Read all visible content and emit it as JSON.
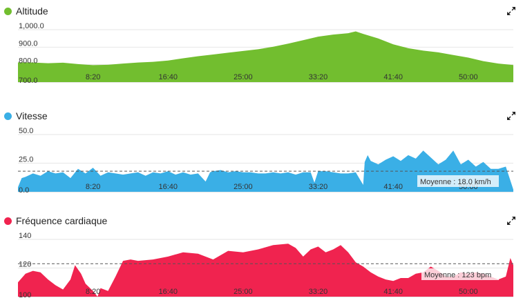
{
  "chart_data": [
    {
      "type": "area",
      "title": "Altitude",
      "color": "#72be2f",
      "ylim": [
        700,
        1000
      ],
      "y_ticks": [
        "1,000.0",
        "900.0",
        "800.0",
        "700.0"
      ],
      "y_tick_values": [
        1000,
        900,
        800,
        700
      ],
      "x_ticks": [
        "8:20",
        "16:40",
        "25:00",
        "33:20",
        "41:40",
        "50:00"
      ],
      "x_tick_values": [
        500,
        1000,
        1500,
        2000,
        2500,
        3000
      ],
      "xlim": [
        0,
        3300
      ],
      "x": [
        0,
        100,
        200,
        300,
        400,
        500,
        600,
        700,
        800,
        900,
        1000,
        1100,
        1200,
        1300,
        1400,
        1500,
        1600,
        1700,
        1800,
        1900,
        2000,
        2100,
        2200,
        2250,
        2300,
        2400,
        2500,
        2600,
        2700,
        2800,
        2900,
        3000,
        3100,
        3200,
        3300
      ],
      "y": [
        813,
        812,
        808,
        811,
        803,
        797,
        799,
        806,
        812,
        816,
        823,
        836,
        848,
        858,
        868,
        878,
        888,
        902,
        920,
        940,
        960,
        972,
        980,
        990,
        976,
        950,
        916,
        894,
        880,
        870,
        855,
        840,
        820,
        806,
        798
      ]
    },
    {
      "type": "area",
      "title": "Vitesse",
      "color": "#3aafe6",
      "ylim": [
        0,
        50
      ],
      "y_ticks": [
        "50.0",
        "25.0",
        "0.0"
      ],
      "y_tick_values": [
        50,
        25,
        0
      ],
      "x_ticks": [
        "8:20",
        "16:40",
        "25:00",
        "33:20",
        "41:40",
        "50:00"
      ],
      "x_tick_values": [
        500,
        1000,
        1500,
        2000,
        2500,
        3000
      ],
      "xlim": [
        0,
        3300
      ],
      "average": 18.0,
      "average_label": "Moyenne : 18.0 km/h",
      "x": [
        0,
        25,
        50,
        100,
        150,
        200,
        250,
        300,
        350,
        400,
        450,
        500,
        550,
        600,
        650,
        700,
        750,
        800,
        850,
        900,
        950,
        1000,
        1050,
        1100,
        1150,
        1200,
        1250,
        1280,
        1300,
        1350,
        1400,
        1450,
        1500,
        1550,
        1600,
        1650,
        1700,
        1750,
        1800,
        1850,
        1900,
        1950,
        1975,
        2000,
        2050,
        2100,
        2150,
        2200,
        2250,
        2300,
        2310,
        2330,
        2350,
        2400,
        2450,
        2500,
        2550,
        2600,
        2650,
        2700,
        2750,
        2800,
        2850,
        2900,
        2950,
        3000,
        3050,
        3100,
        3150,
        3200,
        3250,
        3300
      ],
      "y": [
        4,
        12,
        13,
        16,
        14,
        18,
        16,
        17,
        12,
        20,
        16,
        21,
        14,
        17,
        16,
        15,
        16,
        17,
        14,
        17,
        16,
        18,
        15,
        17,
        15,
        16,
        9,
        17,
        18,
        19,
        17,
        18,
        17,
        17,
        16,
        16,
        17,
        16,
        17,
        15,
        17,
        17,
        8,
        18,
        18,
        17,
        16,
        16,
        17,
        6,
        26,
        32,
        27,
        24,
        28,
        31,
        27,
        32,
        29,
        36,
        30,
        24,
        28,
        36,
        24,
        28,
        22,
        26,
        20,
        20,
        22,
        2
      ]
    },
    {
      "type": "area",
      "title": "Fréquence cardiaque",
      "color": "#f0234f",
      "ylim": [
        100,
        140
      ],
      "y_ticks": [
        "140",
        "120",
        "100"
      ],
      "y_tick_values": [
        140,
        120,
        100
      ],
      "x_ticks": [
        "8:20",
        "16:40",
        "25:00",
        "33:20",
        "41:40",
        "50:00"
      ],
      "x_tick_values": [
        500,
        1000,
        1500,
        2000,
        2500,
        3000
      ],
      "xlim": [
        0,
        3300
      ],
      "average": 123,
      "average_label": "Moyenne : 123 bpm",
      "x": [
        0,
        50,
        100,
        150,
        200,
        250,
        300,
        350,
        380,
        420,
        450,
        500,
        530,
        550,
        600,
        650,
        700,
        750,
        800,
        900,
        1000,
        1100,
        1200,
        1300,
        1400,
        1500,
        1600,
        1700,
        1800,
        1850,
        1900,
        1950,
        2000,
        2050,
        2100,
        2150,
        2200,
        2250,
        2300,
        2350,
        2400,
        2450,
        2500,
        2550,
        2600,
        2650,
        2700,
        2750,
        2800,
        2850,
        2900,
        2950,
        3000,
        3050,
        3100,
        3150,
        3200,
        3250,
        3280,
        3300
      ],
      "y": [
        110,
        116,
        118,
        117,
        112,
        108,
        105,
        112,
        122,
        116,
        109,
        104,
        100,
        106,
        104,
        114,
        125,
        126,
        125,
        126,
        128,
        131,
        130,
        126,
        132,
        131,
        133,
        136,
        137,
        134,
        128,
        133,
        135,
        131,
        133,
        136,
        131,
        124,
        121,
        117,
        114,
        112,
        111,
        113,
        113,
        116,
        117,
        121,
        118,
        114,
        114,
        117,
        116,
        117,
        116,
        114,
        112,
        114,
        127,
        122
      ]
    }
  ]
}
